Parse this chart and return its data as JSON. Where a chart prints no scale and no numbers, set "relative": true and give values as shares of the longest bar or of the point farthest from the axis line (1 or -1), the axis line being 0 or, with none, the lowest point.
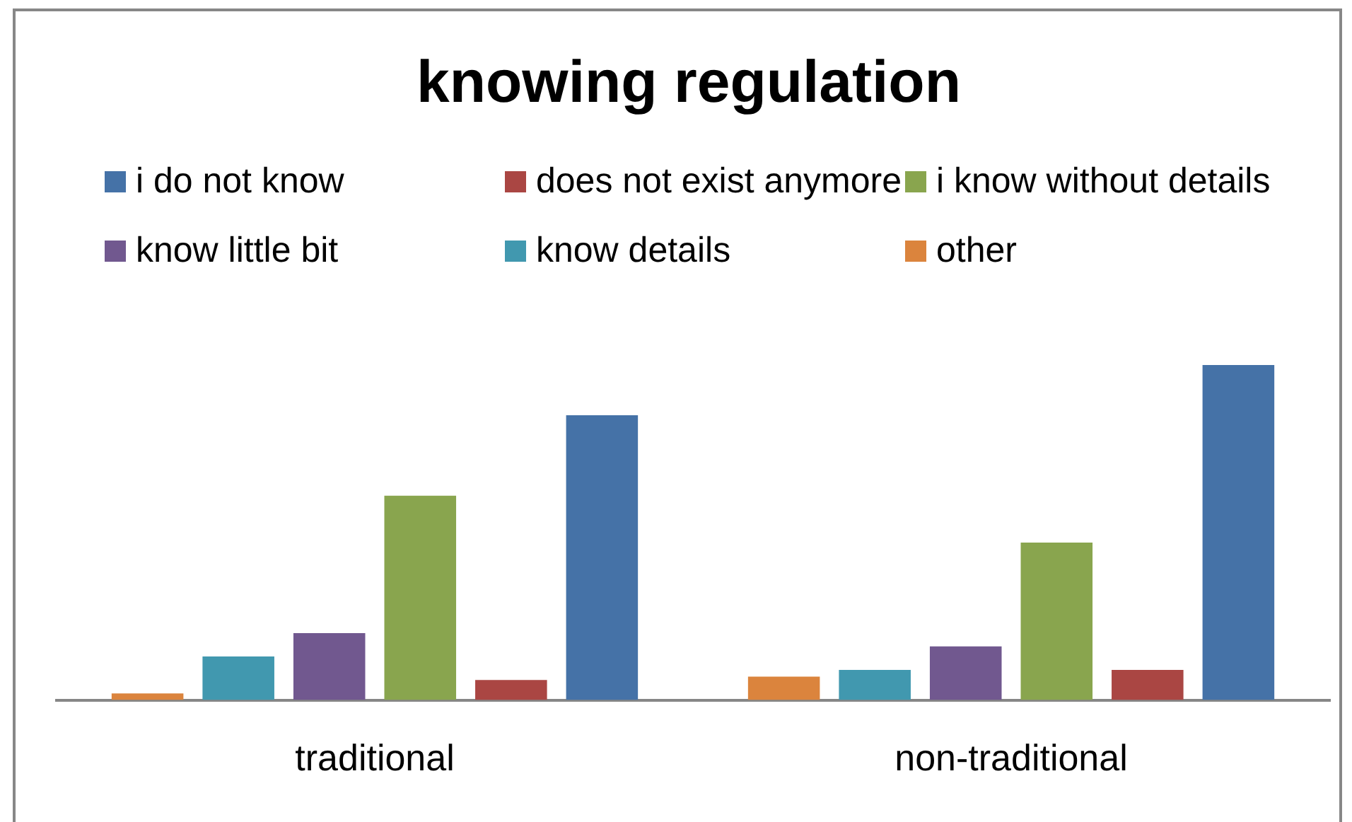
{
  "chart_data": {
    "type": "bar",
    "title": "knowing regulation",
    "categories": [
      "traditional",
      "non-traditional"
    ],
    "series": [
      {
        "name": "other",
        "color": "#db843d",
        "values": [
          0.02,
          0.07
        ]
      },
      {
        "name": "know details",
        "color": "#4198af",
        "values": [
          0.13,
          0.09
        ]
      },
      {
        "name": "know little bit",
        "color": "#71588f",
        "values": [
          0.2,
          0.16
        ]
      },
      {
        "name": "i know without details",
        "color": "#89a54e",
        "values": [
          0.61,
          0.47
        ]
      },
      {
        "name": "does not exist anymore",
        "color": "#aa4643",
        "values": [
          0.06,
          0.09
        ]
      },
      {
        "name": "i do not know",
        "color": "#4572a7",
        "values": [
          0.85,
          1
        ]
      }
    ],
    "relative": true,
    "legend": "top"
  }
}
